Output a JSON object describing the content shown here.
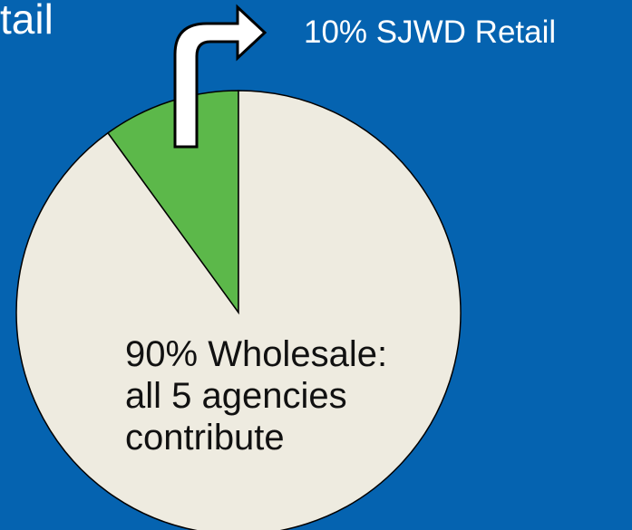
{
  "chart_data": {
    "type": "pie",
    "title": "tail",
    "categories": [
      "SJWD Retail",
      "Wholesale: all 5 agencies contribute"
    ],
    "values": [
      10,
      90
    ],
    "value_labels": [
      "10%",
      "90%"
    ],
    "colors": [
      "#5cb84a",
      "#eeebe0"
    ]
  }
}
